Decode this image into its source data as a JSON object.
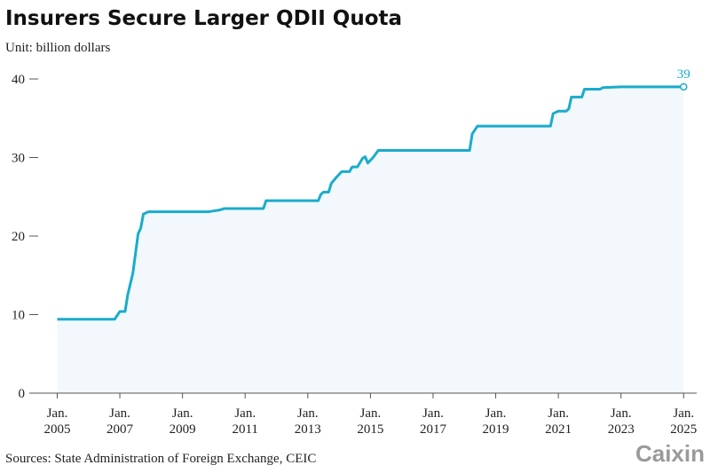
{
  "chart_data": {
    "type": "line",
    "title": "Insurers Secure Larger QDII Quota",
    "subtitle": "Unit: billion dollars",
    "source": "Sources: State Administration of Foreign Exchange, CEIC",
    "logo": "Caixin",
    "x": [
      "2005-01",
      "2006-11",
      "2007-01",
      "2007-03",
      "2007-04",
      "2007-06",
      "2007-08",
      "2007-09",
      "2007-10",
      "2007-12",
      "2009-11",
      "2010-03",
      "2010-05",
      "2011-08",
      "2011-09",
      "2013-05",
      "2013-06",
      "2013-07",
      "2013-09",
      "2013-10",
      "2013-12",
      "2014-02",
      "2014-05",
      "2014-06",
      "2014-08",
      "2014-10",
      "2014-11",
      "2014-12",
      "2015-02",
      "2015-04",
      "2018-03",
      "2018-04",
      "2018-06",
      "2020-10",
      "2020-11",
      "2021-01",
      "2021-04",
      "2021-05",
      "2021-06",
      "2021-10",
      "2021-11",
      "2022-05",
      "2022-06",
      "2023-01",
      "2025-01"
    ],
    "series": [
      {
        "color": "#1aaccc",
        "fill": "#f2f8fb",
        "values": [
          9.4,
          9.4,
          10.4,
          10.4,
          12.5,
          15.3,
          20.3,
          21,
          22.8,
          23.1,
          23.1,
          23.3,
          23.5,
          23.5,
          24.5,
          24.5,
          25.3,
          25.6,
          25.6,
          26.7,
          27.5,
          28.2,
          28.2,
          28.8,
          28.8,
          29.9,
          30.1,
          29.3,
          30,
          30.9,
          30.9,
          33,
          34,
          34,
          35.6,
          35.9,
          35.9,
          36.2,
          37.7,
          37.7,
          38.7,
          38.7,
          38.9,
          39,
          39
        ]
      }
    ],
    "xlim": [
      "2004-04",
      "2025-06"
    ],
    "xticks": [
      {
        "value": "2005-01",
        "label": "Jan.\n2005"
      },
      {
        "value": "2007-01",
        "label": "Jan.\n2007"
      },
      {
        "value": "2009-01",
        "label": "Jan.\n2009"
      },
      {
        "value": "2011-01",
        "label": "Jan.\n2011"
      },
      {
        "value": "2013-01",
        "label": "Jan.\n2013"
      },
      {
        "value": "2015-01",
        "label": "Jan.\n2015"
      },
      {
        "value": "2017-01",
        "label": "Jan.\n2017"
      },
      {
        "value": "2019-01",
        "label": "Jan.\n2019"
      },
      {
        "value": "2021-01",
        "label": "Jan.\n2021"
      },
      {
        "value": "2023-01",
        "label": "Jan.\n2023"
      },
      {
        "value": "2025-01",
        "label": "Jan.\n2025"
      }
    ],
    "ylim": [
      0,
      40
    ],
    "yticks": [
      0,
      10,
      20,
      30,
      40
    ]
  }
}
